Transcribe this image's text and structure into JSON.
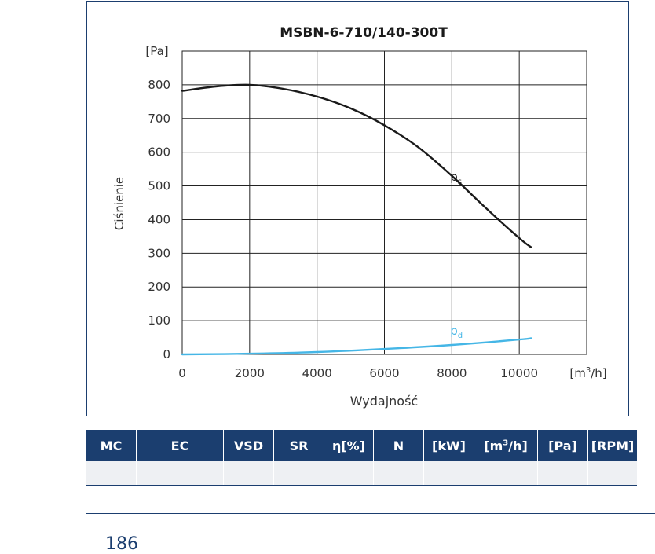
{
  "chart_data": {
    "type": "line",
    "title": "MSBN-6-710/140-300T",
    "xlabel": "Wydajność",
    "ylabel": "Ciśnienie",
    "x_unit_label": "[m³/h]",
    "y_unit_label": "[Pa]",
    "xlim": [
      0,
      12000
    ],
    "ylim": [
      0,
      900
    ],
    "x_ticks": [
      0,
      2000,
      4000,
      6000,
      8000,
      10000
    ],
    "y_ticks": [
      0,
      100,
      200,
      300,
      400,
      500,
      600,
      700,
      800
    ],
    "grid": true,
    "series": [
      {
        "name": "ps",
        "label_main": "p",
        "label_sub": "s",
        "color": "#1a1a1a",
        "x": [
          0,
          1000,
          2000,
          3000,
          4000,
          5000,
          6000,
          7000,
          8000,
          9000,
          10000,
          10350
        ],
        "y": [
          782,
          795,
          800,
          788,
          765,
          730,
          680,
          615,
          530,
          435,
          345,
          318
        ]
      },
      {
        "name": "pd",
        "label_main": "p",
        "label_sub": "d",
        "color": "#45b6e6",
        "x": [
          0,
          2000,
          4000,
          6000,
          8000,
          10000,
          10350
        ],
        "y": [
          0,
          2,
          7,
          16,
          28,
          44,
          48
        ]
      }
    ]
  },
  "table": {
    "headers": [
      {
        "main": "MC",
        "sup": ""
      },
      {
        "main": "EC",
        "sup": ""
      },
      {
        "main": "VSD",
        "sup": ""
      },
      {
        "main": "SR",
        "sup": ""
      },
      {
        "main": "η[%]",
        "sup": ""
      },
      {
        "main": "N",
        "sup": ""
      },
      {
        "main": "[kW]",
        "sup": ""
      },
      {
        "main": "[m",
        "sup": "3",
        "tail": "/h]"
      },
      {
        "main": "[Pa]",
        "sup": ""
      },
      {
        "main": "[RPM]",
        "sup": ""
      }
    ]
  },
  "page_number": "186",
  "colors": {
    "navy": "#1b3e6f",
    "row_fill": "#eef0f3",
    "grid": "#222222",
    "text": "#333333"
  }
}
